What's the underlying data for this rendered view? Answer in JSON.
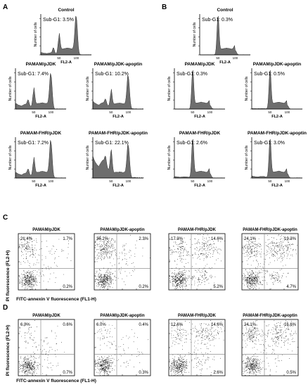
{
  "colors": {
    "histogram_fill": "#6e6e6e",
    "axis": "#000000",
    "dot": "#1a1a1a",
    "quad_line": "#7a7a7a",
    "text": "#000000"
  },
  "panels": {
    "A": {
      "letter": "A",
      "hist_xlabel": "FL2-A",
      "hist_ylabel": "Number of cells"
    },
    "B": {
      "letter": "B",
      "hist_xlabel": "FL2-A",
      "hist_ylabel": "Number of cells"
    },
    "C": {
      "letter": "C",
      "ylabel": "PI fluorescence (FL2-H)",
      "xlabel": "FITC-annexin V fluorescence (FL1-H)"
    },
    "D": {
      "letter": "D",
      "ylabel": "PI fluorescence (FL2-H)",
      "xlabel": "FITC-annexin V fluorescence (FL1-H)"
    }
  },
  "chart_data": [
    {
      "panel": "A",
      "type": "area",
      "x_ticks": [
        "50",
        "100"
      ],
      "xlabel": "FL2-A",
      "ylabel": "Number of cells",
      "histograms": [
        {
          "title": "Control",
          "sub_g1_label": "Sub-G1: 3.5%",
          "sub_g1_pct": 3.5,
          "g1_height": 0.45,
          "g2_height": 1.0,
          "sub_g1_level": 0.05
        },
        {
          "title": "PAMAM/pJDK",
          "sub_g1_label": "Sub-G1: 7.4%",
          "sub_g1_pct": 7.4,
          "g1_height": 0.45,
          "g2_height": 0.9,
          "sub_g1_level": 0.12
        },
        {
          "title": "PAMAM/pJDK-apoptin",
          "sub_g1_label": "Sub-G1: 10.2%",
          "sub_g1_pct": 10.2,
          "g1_height": 0.4,
          "g2_height": 0.85,
          "sub_g1_level": 0.16
        },
        {
          "title": "PAMAM-FHR/pJDK",
          "sub_g1_label": "Sub-G1: 7.2%",
          "sub_g1_pct": 7.2,
          "g1_height": 0.42,
          "g2_height": 0.95,
          "sub_g1_level": 0.12
        },
        {
          "title": "PAMAM-FHR/pJDK-apoptin",
          "sub_g1_label": "Sub-G1: 22.1%",
          "sub_g1_pct": 22.1,
          "g1_height": 0.6,
          "g2_height": 0.85,
          "sub_g1_level": 0.45
        }
      ]
    },
    {
      "panel": "B",
      "type": "area",
      "x_ticks": [
        "50",
        "100"
      ],
      "xlabel": "FL2-A",
      "ylabel": "Number of cells",
      "histograms": [
        {
          "title": "Control",
          "sub_g1_label": "Sub-G1: 0.3%",
          "sub_g1_pct": 0.3,
          "g1_height": 1.0,
          "g2_height": 0.12,
          "sub_g1_level": 0.0
        },
        {
          "title": "PAMAM/pJDK",
          "sub_g1_label": "Sub-G1: 0.3%",
          "sub_g1_pct": 0.3,
          "g1_height": 1.0,
          "g2_height": 0.1,
          "sub_g1_level": 0.0
        },
        {
          "title": "PAMAM/pJDK-apoptin",
          "sub_g1_label": "Sub-G1: 0.5%",
          "sub_g1_pct": 0.5,
          "g1_height": 1.0,
          "g2_height": 0.1,
          "sub_g1_level": 0.01
        },
        {
          "title": "PAMAM-FHR/pJDK",
          "sub_g1_label": "Sub-G1: 2.6%",
          "sub_g1_pct": 2.6,
          "g1_height": 1.0,
          "g2_height": 0.12,
          "sub_g1_level": 0.03
        },
        {
          "title": "PAMAM-FHR/pJDK-apoptin",
          "sub_g1_label": "Sub-G1: 3.0%",
          "sub_g1_pct": 3.0,
          "g1_height": 1.0,
          "g2_height": 0.12,
          "sub_g1_level": 0.04
        }
      ]
    },
    {
      "panel": "C",
      "type": "scatter",
      "xlabel": "FITC-annexin V fluorescence (FL1-H)",
      "ylabel": "PI fluorescence (FL2-H)",
      "plots": [
        {
          "title": "PAMAM/pJDK",
          "q1_label": "21.4%",
          "q2_label": "1.7%",
          "q4_label": "0.2%",
          "q1": 21.4,
          "q2": 1.7,
          "q4": 0.2
        },
        {
          "title": "PAMAM/pJDK-apoptin",
          "q1_label": "36.2%",
          "q2_label": "2.3%",
          "q4_label": "0.2%",
          "q1": 36.2,
          "q2": 2.3,
          "q4": 0.2
        },
        {
          "title": "PAMAM-FHR/pJDK",
          "q1_label": "17.3%",
          "q2_label": "14.6%",
          "q4_label": "5.2%",
          "q1": 17.3,
          "q2": 14.6,
          "q4": 5.2
        },
        {
          "title": "PAMAM-FHR/pJDK-apoptin",
          "q1_label": "24.1%",
          "q2_label": "19.3%",
          "q4_label": "4.7%",
          "q1": 24.1,
          "q2": 19.3,
          "q4": 4.7
        }
      ]
    },
    {
      "panel": "D",
      "type": "scatter",
      "xlabel": "FITC-annexin V fluorescence (FL1-H)",
      "ylabel": "PI fluorescence (FL2-H)",
      "plots": [
        {
          "title": "PAMAM/pJDK",
          "q1_label": "6.0%",
          "q2_label": "0.6%",
          "q4_label": "0.7%",
          "q1": 6.0,
          "q2": 0.6,
          "q4": 0.7
        },
        {
          "title": "PAMAM/pJDK-apoptin",
          "q1_label": "6.0%",
          "q2_label": "0.4%",
          "q4_label": "0.3%",
          "q1": 6.0,
          "q2": 0.4,
          "q4": 0.3
        },
        {
          "title": "PAMAM-FHR/pJDK",
          "q1_label": "12.6%",
          "q2_label": "14.6%",
          "q4_label": "2.6%",
          "q1": 12.6,
          "q2": 14.6,
          "q4": 2.6
        },
        {
          "title": "PAMAM-FHR/pJDK-apoptin",
          "q1_label": "24.1%",
          "q2_label": "16.6%",
          "q4_label": "0.5%",
          "q1": 24.1,
          "q2": 16.6,
          "q4": 0.5
        }
      ]
    }
  ]
}
